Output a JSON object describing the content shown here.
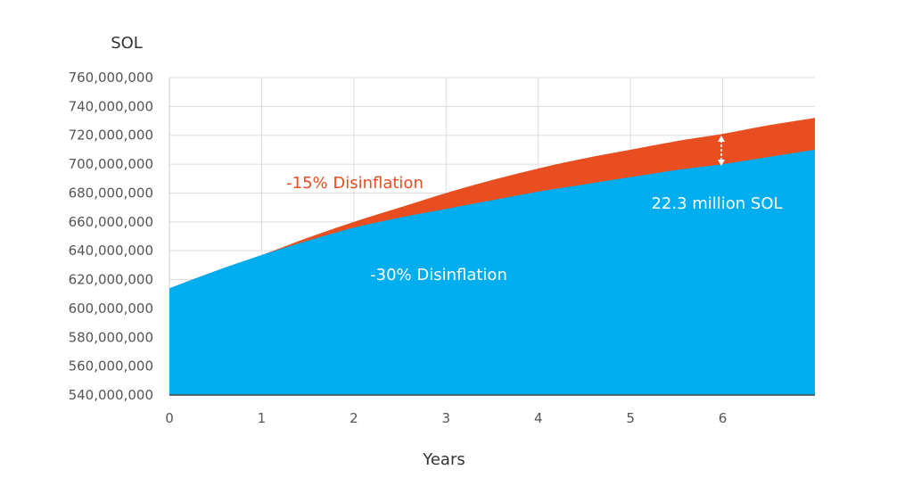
{
  "chart_data": {
    "type": "area",
    "ylabel": "SOL",
    "xlabel": "Years",
    "x_ticks": [
      "0",
      "1",
      "2",
      "3",
      "4",
      "5",
      "6"
    ],
    "y_ticks": [
      "540,000,000",
      "560,000,000",
      "580,000,000",
      "600,000,000",
      "620,000,000",
      "640,000,000",
      "660,000,000",
      "680,000,000",
      "700,000,000",
      "720,000,000",
      "740,000,000",
      "760,000,000"
    ],
    "xlim": [
      0,
      7
    ],
    "ylim": [
      540000000,
      760000000
    ],
    "grid": true,
    "x": [
      0,
      0.5,
      1,
      1.5,
      2,
      2.5,
      3,
      3.5,
      4,
      4.5,
      5,
      5.5,
      6,
      6.5,
      7
    ],
    "series": [
      {
        "name": "-15% Disinflation",
        "color": "#e84e1f",
        "values": [
          614000000,
          626000000,
          637000000,
          649000000,
          660000000,
          670000000,
          680000000,
          689000000,
          697000000,
          704000000,
          710000000,
          716000000,
          721000000,
          727000000,
          732000000
        ]
      },
      {
        "name": "-30% Disinflation",
        "color": "#00aeef",
        "values": [
          614000000,
          626000000,
          637000000,
          647000000,
          656000000,
          663000000,
          669000000,
          675000000,
          681000000,
          686000000,
          691000000,
          696000000,
          700000000,
          705000000,
          710000000
        ]
      }
    ],
    "annotations": [
      {
        "text": "-15% Disinflation",
        "color": "#e84e1f"
      },
      {
        "text": "-30% Disinflation",
        "color": "#ffffff"
      },
      {
        "text": "22.3 million SOL",
        "color": "#ffffff"
      }
    ]
  }
}
